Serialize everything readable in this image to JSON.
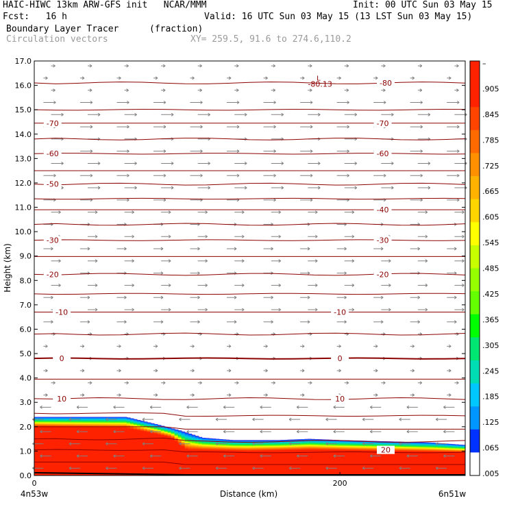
{
  "header": {
    "line1_left": "HAIC-HIWC 13km ARW-GFS init   NCAR/MMM",
    "line1_right": "Init: 00 UTC Sun 03 May 15",
    "fcst": "Fcst:   16 h",
    "valid": "Valid: 16 UTC Sun 03 May 15 (13 LST Sun 03 May 15)",
    "field_name": "Boundary Layer Tracer",
    "field_unit": "(fraction)",
    "vector_name": "Circulation vectors",
    "xy_info": "XY= 259.5, 91.6 to 274.6,110.2"
  },
  "chart_data": {
    "type": "heatmap",
    "ylabel": "Height (km)",
    "xlabel": "Distance (km)",
    "ylim": [
      0,
      17
    ],
    "xlim": [
      0,
      282
    ],
    "y_ticks": [
      "0.0",
      "1.0",
      "2.0",
      "3.0",
      "4.0",
      "5.0",
      "6.0",
      "7.0",
      "8.0",
      "9.0",
      "10.0",
      "11.0",
      "12.0",
      "13.0",
      "14.0",
      "15.0",
      "16.0",
      "17.0"
    ],
    "x_ticks": [
      {
        "value": 0,
        "label": "0"
      },
      {
        "value": 200,
        "label": "200"
      }
    ],
    "left_end_label": "4n53w",
    "right_end_label": "6n51w",
    "colorbar_labels": [
      "–",
      ".905",
      ".845",
      ".785",
      ".725",
      ".665",
      ".605",
      ".545",
      ".485",
      ".425",
      ".365",
      ".305",
      ".245",
      ".185",
      ".125",
      ".065",
      ".005"
    ],
    "colorbar_colors": [
      "#ff2200",
      "#ff2200",
      "#ff4400",
      "#ff6a00",
      "#ff9100",
      "#ffb200",
      "#ffd500",
      "#ffff00",
      "#c8ff00",
      "#96ff00",
      "#64ff00",
      "#00ff00",
      "#00e672",
      "#00dcb4",
      "#00c8ff",
      "#0096ff",
      "#0032ff",
      "#ffffff"
    ],
    "temperature_contours": [
      {
        "value": -80,
        "label": "-80"
      },
      {
        "value": -70,
        "label": "-70"
      },
      {
        "value": -60,
        "label": "-60"
      },
      {
        "value": -50,
        "label": "-50"
      },
      {
        "value": -40,
        "label": "-40"
      },
      {
        "value": -30,
        "label": "-30"
      },
      {
        "value": -20,
        "label": "-20"
      },
      {
        "value": -10,
        "label": "-10"
      },
      {
        "value": 0,
        "label": "0"
      },
      {
        "value": 10,
        "label": "10"
      },
      {
        "value": 20,
        "label": "20"
      }
    ],
    "minimum_label": "L",
    "minimum_value": "-80.13",
    "tracer_top_km": [
      [
        0,
        2.4
      ],
      [
        30,
        2.4
      ],
      [
        60,
        2.4
      ],
      [
        80,
        2.1
      ],
      [
        95,
        1.85
      ],
      [
        110,
        1.55
      ],
      [
        130,
        1.45
      ],
      [
        160,
        1.45
      ],
      [
        180,
        1.5
      ],
      [
        200,
        1.45
      ],
      [
        230,
        1.4
      ],
      [
        260,
        1.35
      ],
      [
        282,
        1.25
      ]
    ],
    "tracer_full_km": [
      [
        0,
        2.0
      ],
      [
        60,
        1.95
      ],
      [
        80,
        1.7
      ],
      [
        90,
        1.55
      ],
      [
        100,
        1.05
      ],
      [
        140,
        1.0
      ],
      [
        180,
        1.05
      ],
      [
        230,
        1.0
      ],
      [
        282,
        0.95
      ]
    ]
  }
}
